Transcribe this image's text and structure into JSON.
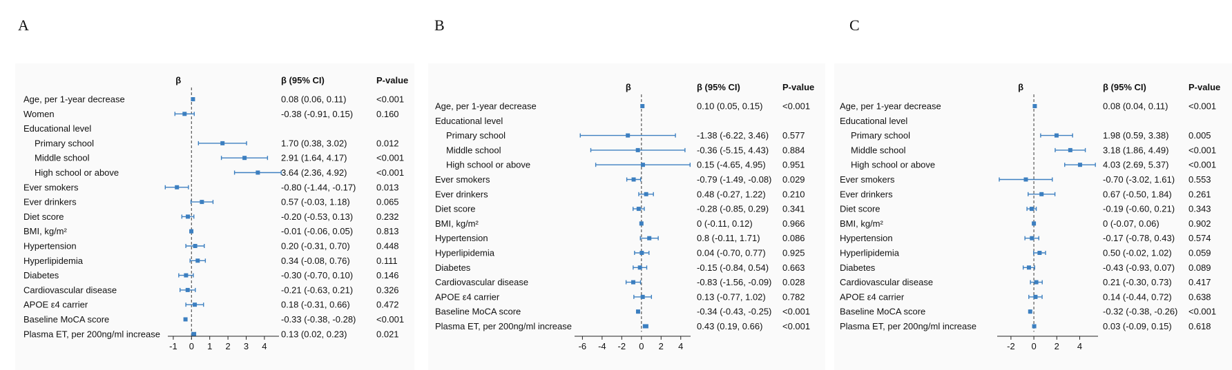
{
  "colors": {
    "marker": "#3c7fc0",
    "zero_line": "#555555",
    "axis": "#222222",
    "text": "#111111",
    "panel_bg": "#fafafa"
  },
  "panel_labels": [
    "A",
    "B",
    "C"
  ],
  "headers": {
    "beta": "β",
    "ci": "β (95% CI)",
    "p": "P-value"
  },
  "chart_data": [
    {
      "type": "forest",
      "panel": "A",
      "xlim": [
        -1.3,
        4.8
      ],
      "xticks": [
        -1,
        0,
        1,
        2,
        3,
        4
      ],
      "rows": [
        {
          "label": "Age, per 1-year decrease",
          "indent": false,
          "beta": 0.08,
          "lo": 0.06,
          "hi": 0.11,
          "ci": "0.08 (0.06, 0.11)",
          "p": "<0.001"
        },
        {
          "label": "Women",
          "indent": false,
          "beta": -0.38,
          "lo": -0.91,
          "hi": 0.15,
          "ci": "-0.38 (-0.91, 0.15)",
          "p": "0.160"
        },
        {
          "label": "Educational level",
          "indent": false,
          "header": true
        },
        {
          "label": "Primary school",
          "indent": true,
          "beta": 1.7,
          "lo": 0.38,
          "hi": 3.02,
          "ci": "1.70 (0.38, 3.02)",
          "p": "0.012"
        },
        {
          "label": "Middle school",
          "indent": true,
          "beta": 2.91,
          "lo": 1.64,
          "hi": 4.17,
          "ci": "2.91 (1.64, 4.17)",
          "p": "<0.001"
        },
        {
          "label": "High school or above",
          "indent": true,
          "beta": 3.64,
          "lo": 2.36,
          "hi": 4.92,
          "ci": "3.64 (2.36, 4.92)",
          "p": "<0.001"
        },
        {
          "label": "Ever smokers",
          "indent": false,
          "beta": -0.8,
          "lo": -1.44,
          "hi": -0.17,
          "ci": "-0.80 (-1.44, -0.17)",
          "p": "0.013"
        },
        {
          "label": "Ever drinkers",
          "indent": false,
          "beta": 0.57,
          "lo": -0.03,
          "hi": 1.18,
          "ci": "0.57 (-0.03, 1.18)",
          "p": "0.065"
        },
        {
          "label": "Diet score",
          "indent": false,
          "beta": -0.2,
          "lo": -0.53,
          "hi": 0.13,
          "ci": "-0.20 (-0.53, 0.13)",
          "p": "0.232"
        },
        {
          "label": "BMI, kg/m²",
          "indent": false,
          "beta": -0.01,
          "lo": -0.06,
          "hi": 0.05,
          "ci": "-0.01 (-0.06, 0.05)",
          "p": "0.813"
        },
        {
          "label": "Hypertension",
          "indent": false,
          "beta": 0.2,
          "lo": -0.31,
          "hi": 0.7,
          "ci": "0.20 (-0.31, 0.70)",
          "p": "0.448"
        },
        {
          "label": "Hyperlipidemia",
          "indent": false,
          "beta": 0.34,
          "lo": -0.08,
          "hi": 0.76,
          "ci": "0.34 (-0.08, 0.76)",
          "p": "0.111"
        },
        {
          "label": "Diabetes",
          "indent": false,
          "beta": -0.3,
          "lo": -0.7,
          "hi": 0.1,
          "ci": "-0.30 (-0.70, 0.10)",
          "p": "0.146"
        },
        {
          "label": "Cardiovascular disease",
          "indent": false,
          "beta": -0.21,
          "lo": -0.63,
          "hi": 0.21,
          "ci": "-0.21 (-0.63, 0.21)",
          "p": "0.326"
        },
        {
          "label": "APOE ε4 carrier",
          "indent": false,
          "beta": 0.18,
          "lo": -0.31,
          "hi": 0.66,
          "ci": "0.18 (-0.31, 0.66)",
          "p": "0.472"
        },
        {
          "label": "Baseline MoCA score",
          "indent": false,
          "beta": -0.33,
          "lo": -0.38,
          "hi": -0.28,
          "ci": "-0.33 (-0.38, -0.28)",
          "p": "<0.001"
        },
        {
          "label": "Plasma ET, per 200ng/ml increase",
          "indent": false,
          "beta": 0.13,
          "lo": 0.02,
          "hi": 0.23,
          "ci": "0.13 (0.02, 0.23)",
          "p": "0.021"
        }
      ]
    },
    {
      "type": "forest",
      "panel": "B",
      "xlim": [
        -6.8,
        5.0
      ],
      "xticks": [
        -6,
        -4,
        -2,
        0,
        2,
        4
      ],
      "rows": [
        {
          "label": "Age, per 1-year decrease",
          "indent": false,
          "beta": 0.1,
          "lo": 0.05,
          "hi": 0.15,
          "ci": "0.10 (0.05, 0.15)",
          "p": "<0.001"
        },
        {
          "label": "Educational level",
          "indent": false,
          "header": true
        },
        {
          "label": "Primary school",
          "indent": true,
          "beta": -1.38,
          "lo": -6.22,
          "hi": 3.46,
          "ci": "-1.38 (-6.22, 3.46)",
          "p": "0.577"
        },
        {
          "label": "Middle school",
          "indent": true,
          "beta": -0.36,
          "lo": -5.15,
          "hi": 4.43,
          "ci": "-0.36 (-5.15, 4.43)",
          "p": "0.884"
        },
        {
          "label": "High school or above",
          "indent": true,
          "beta": 0.15,
          "lo": -4.65,
          "hi": 4.95,
          "ci": "0.15 (-4.65, 4.95)",
          "p": "0.951"
        },
        {
          "label": "Ever smokers",
          "indent": false,
          "beta": -0.79,
          "lo": -1.49,
          "hi": -0.08,
          "ci": "-0.79 (-1.49, -0.08)",
          "p": "0.029"
        },
        {
          "label": "Ever drinkers",
          "indent": false,
          "beta": 0.48,
          "lo": -0.27,
          "hi": 1.22,
          "ci": "0.48 (-0.27, 1.22)",
          "p": "0.210"
        },
        {
          "label": "Diet score",
          "indent": false,
          "beta": -0.28,
          "lo": -0.85,
          "hi": 0.29,
          "ci": "-0.28 (-0.85, 0.29)",
          "p": "0.341"
        },
        {
          "label": "BMI, kg/m²",
          "indent": false,
          "beta": 0,
          "lo": -0.11,
          "hi": 0.12,
          "ci": "0 (-0.11, 0.12)",
          "p": "0.966"
        },
        {
          "label": "Hypertension",
          "indent": false,
          "beta": 0.8,
          "lo": -0.11,
          "hi": 1.71,
          "ci": "0.8 (-0.11, 1.71)",
          "p": "0.086"
        },
        {
          "label": "Hyperlipidemia",
          "indent": false,
          "beta": 0.04,
          "lo": -0.7,
          "hi": 0.77,
          "ci": "0.04 (-0.70, 0.77)",
          "p": "0.925"
        },
        {
          "label": "Diabetes",
          "indent": false,
          "beta": -0.15,
          "lo": -0.84,
          "hi": 0.54,
          "ci": "-0.15 (-0.84, 0.54)",
          "p": "0.663"
        },
        {
          "label": "Cardiovascular disease",
          "indent": false,
          "beta": -0.83,
          "lo": -1.56,
          "hi": -0.09,
          "ci": "-0.83 (-1.56, -0.09)",
          "p": "0.028"
        },
        {
          "label": "APOE ε4 carrier",
          "indent": false,
          "beta": 0.13,
          "lo": -0.77,
          "hi": 1.02,
          "ci": "0.13 (-0.77, 1.02)",
          "p": "0.782"
        },
        {
          "label": "Baseline MoCA score",
          "indent": false,
          "beta": -0.34,
          "lo": -0.43,
          "hi": -0.25,
          "ci": "-0.34 (-0.43, -0.25)",
          "p": "<0.001"
        },
        {
          "label": "Plasma ET, per 200ng/ml increase",
          "indent": false,
          "beta": 0.43,
          "lo": 0.19,
          "hi": 0.66,
          "ci": "0.43 (0.19, 0.66)",
          "p": "<0.001"
        }
      ]
    },
    {
      "type": "forest",
      "panel": "C",
      "xlim": [
        -3.2,
        5.6
      ],
      "xticks": [
        -2,
        0,
        2,
        4
      ],
      "rows": [
        {
          "label": "Age, per 1-year decrease",
          "indent": false,
          "beta": 0.08,
          "lo": 0.04,
          "hi": 0.11,
          "ci": "0.08 (0.04, 0.11)",
          "p": "<0.001"
        },
        {
          "label": "Educational level",
          "indent": false,
          "header": true
        },
        {
          "label": "Primary school",
          "indent": true,
          "beta": 1.98,
          "lo": 0.59,
          "hi": 3.38,
          "ci": "1.98 (0.59, 3.38)",
          "p": "0.005"
        },
        {
          "label": "Middle school",
          "indent": true,
          "beta": 3.18,
          "lo": 1.86,
          "hi": 4.49,
          "ci": "3.18 (1.86, 4.49)",
          "p": "<0.001"
        },
        {
          "label": "High school or above",
          "indent": true,
          "beta": 4.03,
          "lo": 2.69,
          "hi": 5.37,
          "ci": "4.03 (2.69, 5.37)",
          "p": "<0.001"
        },
        {
          "label": "Ever smokers",
          "indent": false,
          "beta": -0.7,
          "lo": -3.02,
          "hi": 1.61,
          "ci": "-0.70 (-3.02, 1.61)",
          "p": "0.553"
        },
        {
          "label": "Ever drinkers",
          "indent": false,
          "beta": 0.67,
          "lo": -0.5,
          "hi": 1.84,
          "ci": "0.67 (-0.50, 1.84)",
          "p": "0.261"
        },
        {
          "label": "Diet score",
          "indent": false,
          "beta": -0.19,
          "lo": -0.6,
          "hi": 0.21,
          "ci": "-0.19 (-0.60, 0.21)",
          "p": "0.343"
        },
        {
          "label": "BMI, kg/m²",
          "indent": false,
          "beta": 0,
          "lo": -0.07,
          "hi": 0.06,
          "ci": "0 (-0.07, 0.06)",
          "p": "0.902"
        },
        {
          "label": "Hypertension",
          "indent": false,
          "beta": -0.17,
          "lo": -0.78,
          "hi": 0.43,
          "ci": "-0.17 (-0.78, 0.43)",
          "p": "0.574"
        },
        {
          "label": "Hyperlipidemia",
          "indent": false,
          "beta": 0.5,
          "lo": -0.02,
          "hi": 1.02,
          "ci": "0.50 (-0.02, 1.02)",
          "p": "0.059"
        },
        {
          "label": "Diabetes",
          "indent": false,
          "beta": -0.43,
          "lo": -0.93,
          "hi": 0.07,
          "ci": "-0.43 (-0.93, 0.07)",
          "p": "0.089"
        },
        {
          "label": "Cardiovascular disease",
          "indent": false,
          "beta": 0.21,
          "lo": -0.3,
          "hi": 0.73,
          "ci": "0.21 (-0.30, 0.73)",
          "p": "0.417"
        },
        {
          "label": "APOE ε4 carrier",
          "indent": false,
          "beta": 0.14,
          "lo": -0.44,
          "hi": 0.72,
          "ci": "0.14 (-0.44, 0.72)",
          "p": "0.638"
        },
        {
          "label": "Baseline MoCA score",
          "indent": false,
          "beta": -0.32,
          "lo": -0.38,
          "hi": -0.26,
          "ci": "-0.32 (-0.38, -0.26)",
          "p": "<0.001"
        },
        {
          "label": "Plasma ET, per 200ng/ml increase",
          "indent": false,
          "beta": 0.03,
          "lo": -0.09,
          "hi": 0.15,
          "ci": "0.03 (-0.09, 0.15)",
          "p": "0.618"
        }
      ]
    }
  ]
}
